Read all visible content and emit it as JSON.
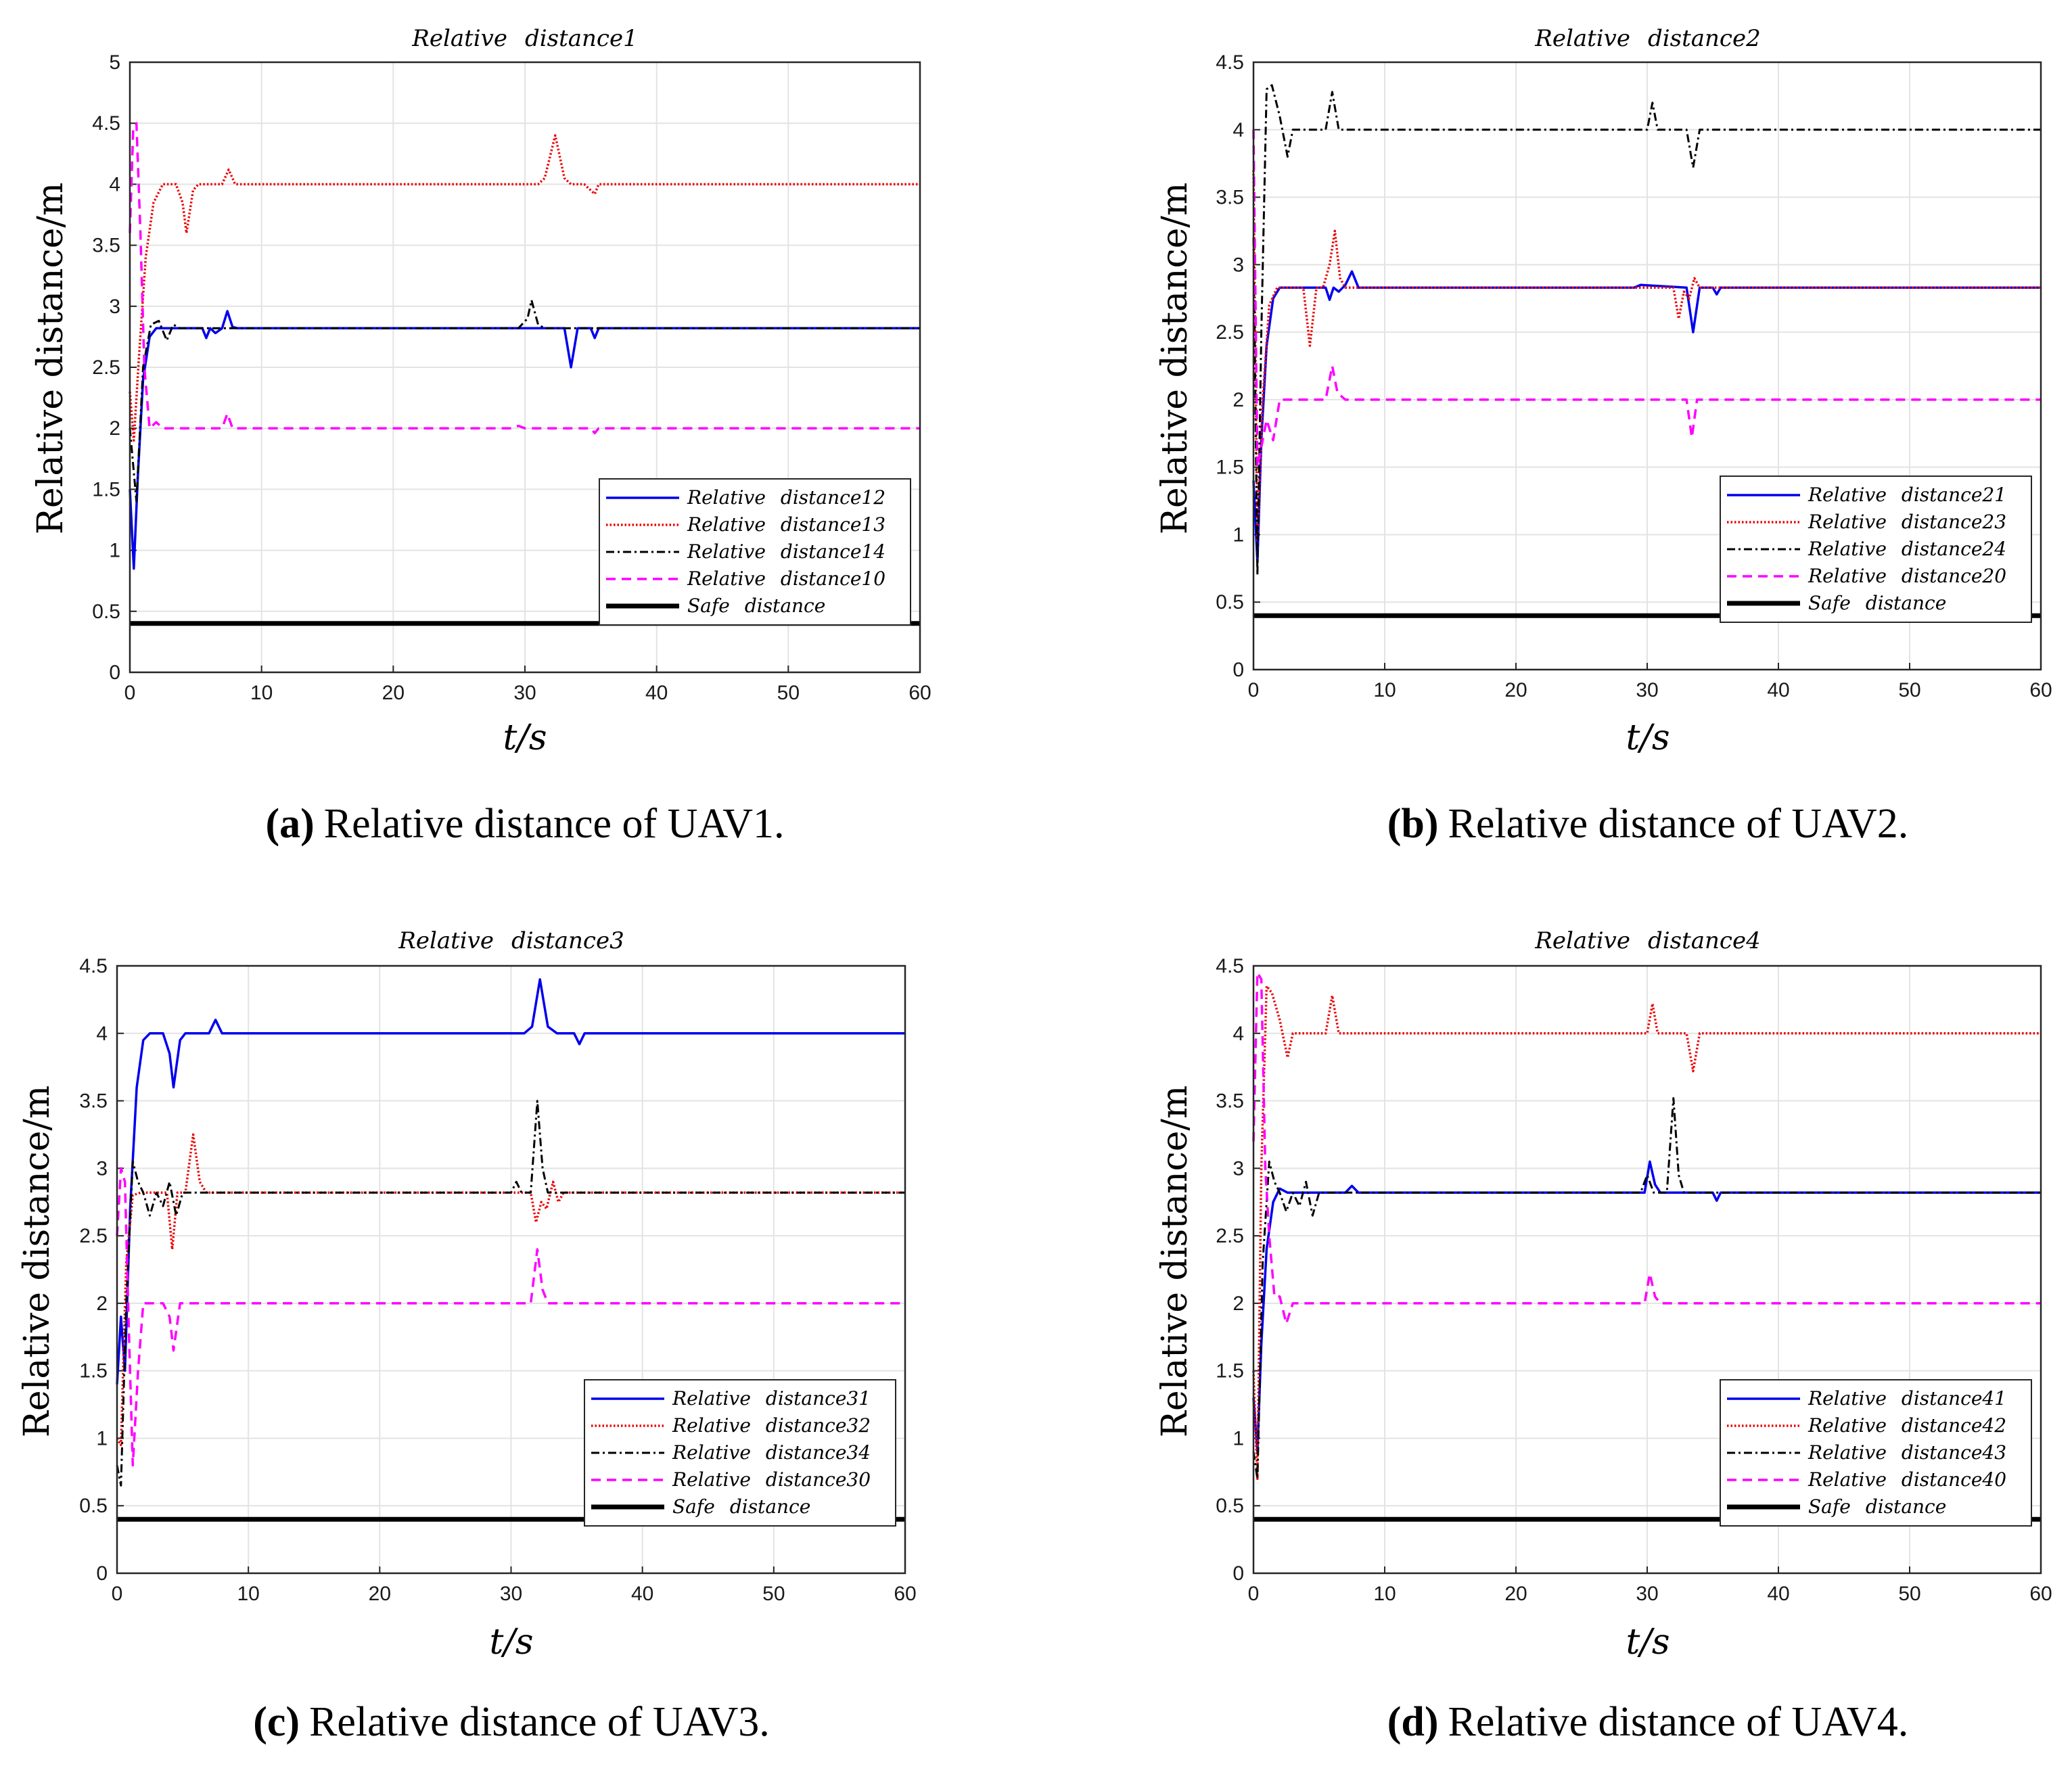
{
  "figure": {
    "panels": [
      {
        "key": "a",
        "caption_letter": "a",
        "caption_text": "Relative distance of UAV1.",
        "legend_ids": [
          "12",
          "13",
          "14",
          "10"
        ]
      },
      {
        "key": "b",
        "caption_letter": "b",
        "caption_text": "Relative distance of UAV2.",
        "legend_ids": [
          "21",
          "23",
          "24",
          "20"
        ]
      },
      {
        "key": "c",
        "caption_letter": "c",
        "caption_text": "Relative distance of UAV3.",
        "legend_ids": [
          "31",
          "32",
          "34",
          "30"
        ]
      },
      {
        "key": "d",
        "caption_letter": "d",
        "caption_text": "Relative distance of UAV4.",
        "legend_ids": [
          "41",
          "42",
          "43",
          "40"
        ]
      }
    ]
  },
  "colors": {
    "blue": "#0000ee",
    "red": "#ee0000",
    "black": "#000000",
    "magenta": "#ff00ff",
    "safe": "#000000"
  },
  "chart_data": [
    {
      "type": "line",
      "title": "Relative distance1",
      "title_word1": "Relative",
      "title_word2": "distance1",
      "xlabel": "t/s",
      "ylabel": "Relative distance/m",
      "xlim": [
        0,
        60
      ],
      "ylim": [
        0,
        5
      ],
      "xticks": [
        "0",
        "10",
        "20",
        "30",
        "40",
        "50",
        "60"
      ],
      "yticks": [
        "0",
        "0.5",
        "1",
        "1.5",
        "2",
        "2.5",
        "3",
        "3.5",
        "4",
        "4.5",
        "5"
      ],
      "legend_position": "bottom-right",
      "series": [
        {
          "name": "Relative distance12",
          "word1": "Relative",
          "word2": "distance12",
          "color": "blue",
          "style": "solid",
          "x": [
            0,
            0.3,
            0.6,
            1.0,
            1.5,
            2.0,
            2.8,
            3.5,
            5.5,
            5.8,
            6.1,
            6.5,
            7.0,
            7.4,
            7.8,
            8.2,
            33.0,
            33.5,
            34.0,
            34.5,
            35.0,
            35.3,
            35.6,
            36.0,
            60
          ],
          "y": [
            1.5,
            0.85,
            1.6,
            2.4,
            2.75,
            2.82,
            2.82,
            2.82,
            2.82,
            2.74,
            2.82,
            2.78,
            2.82,
            2.96,
            2.83,
            2.82,
            2.82,
            2.5,
            2.82,
            2.82,
            2.82,
            2.74,
            2.82,
            2.82,
            2.82
          ]
        },
        {
          "name": "Relative distance13",
          "word1": "Relative",
          "word2": "distance13",
          "color": "red",
          "style": "dotted",
          "x": [
            0,
            0.3,
            0.7,
            1.2,
            1.8,
            2.5,
            3.5,
            4.0,
            4.3,
            4.8,
            5.2,
            7.0,
            7.5,
            8.0,
            31.0,
            31.5,
            32.3,
            33.0,
            33.5,
            34.5,
            35.0,
            35.3,
            35.6,
            60
          ],
          "y": [
            2.3,
            1.9,
            2.6,
            3.4,
            3.85,
            4.0,
            4.0,
            3.85,
            3.6,
            3.95,
            4.0,
            4.0,
            4.12,
            4.0,
            4.0,
            4.05,
            4.4,
            4.05,
            4.0,
            4.0,
            3.95,
            3.92,
            4.0,
            4.0
          ]
        },
        {
          "name": "Relative distance14",
          "word1": "Relative",
          "word2": "distance14",
          "color": "black",
          "style": "dashdot",
          "x": [
            0,
            0.5,
            1.0,
            1.6,
            2.2,
            2.8,
            3.3,
            3.8,
            29.5,
            30.2,
            30.5,
            31.0,
            31.5,
            60
          ],
          "y": [
            2.0,
            1.4,
            2.5,
            2.85,
            2.88,
            2.72,
            2.85,
            2.82,
            2.82,
            2.9,
            3.05,
            2.85,
            2.82,
            2.82
          ]
        },
        {
          "name": "Relative distance10",
          "word1": "Relative",
          "word2": "distance10",
          "color": "magenta",
          "style": "dashed",
          "x": [
            0,
            0.25,
            0.5,
            0.8,
            1.1,
            1.5,
            2.0,
            2.5,
            7.0,
            7.4,
            7.8,
            29.0,
            29.5,
            30.0,
            35.0,
            35.3,
            35.6,
            60
          ],
          "y": [
            3.6,
            4.45,
            4.5,
            3.6,
            2.5,
            2.0,
            2.05,
            2.0,
            2.0,
            2.12,
            2.0,
            2.0,
            2.02,
            2.0,
            2.0,
            1.96,
            2.0,
            2.0
          ]
        },
        {
          "name": "Safe distance",
          "word1": "Safe",
          "word2": "distance",
          "color": "safe",
          "style": "thick",
          "x": [
            0,
            60
          ],
          "y": [
            0.4,
            0.4
          ]
        }
      ]
    },
    {
      "type": "line",
      "title": "Relative distance2",
      "title_word1": "Relative",
      "title_word2": "distance2",
      "xlabel": "t/s",
      "ylabel": "Relative distance/m",
      "xlim": [
        0,
        60
      ],
      "ylim": [
        0,
        4.5
      ],
      "xticks": [
        "0",
        "10",
        "20",
        "30",
        "40",
        "50",
        "60"
      ],
      "yticks": [
        "0",
        "0.5",
        "1",
        "1.5",
        "2",
        "2.5",
        "3",
        "3.5",
        "4",
        "4.5"
      ],
      "legend_position": "bottom-right",
      "series": [
        {
          "name": "Relative distance21",
          "word1": "Relative",
          "word2": "distance21",
          "color": "blue",
          "style": "solid",
          "x": [
            0,
            0.3,
            0.6,
            1.0,
            1.5,
            2.0,
            2.5,
            5.5,
            5.8,
            6.1,
            6.5,
            7.0,
            7.5,
            8.0,
            29.0,
            29.5,
            33.0,
            33.5,
            34.0,
            35.0,
            35.3,
            35.6,
            60
          ],
          "y": [
            1.4,
            0.8,
            1.7,
            2.4,
            2.75,
            2.83,
            2.83,
            2.83,
            2.74,
            2.83,
            2.8,
            2.85,
            2.95,
            2.83,
            2.83,
            2.85,
            2.83,
            2.5,
            2.83,
            2.83,
            2.78,
            2.83,
            2.83
          ]
        },
        {
          "name": "Relative distance23",
          "word1": "Relative",
          "word2": "distance23",
          "color": "red",
          "style": "dotted",
          "x": [
            0,
            0.3,
            0.7,
            1.2,
            1.8,
            2.5,
            3.8,
            4.3,
            4.8,
            5.3,
            5.8,
            6.2,
            6.6,
            7.0,
            32.0,
            32.4,
            32.8,
            33.2,
            33.6,
            34.0,
            60
          ],
          "y": [
            3.7,
            0.95,
            2.0,
            2.7,
            2.83,
            2.83,
            2.83,
            2.4,
            2.83,
            2.83,
            3.0,
            3.25,
            2.9,
            2.83,
            2.83,
            2.6,
            2.8,
            2.75,
            2.9,
            2.83,
            2.83
          ]
        },
        {
          "name": "Relative distance24",
          "word1": "Relative",
          "word2": "distance24",
          "color": "black",
          "style": "dashdot",
          "x": [
            0,
            0.3,
            0.6,
            1.0,
            1.4,
            2.0,
            2.6,
            3.0,
            5.5,
            6.0,
            6.5,
            30.0,
            30.4,
            30.8,
            33.0,
            33.5,
            34.0,
            60
          ],
          "y": [
            3.2,
            0.7,
            2.5,
            4.3,
            4.33,
            4.1,
            3.8,
            4.0,
            4.0,
            4.28,
            4.0,
            4.0,
            4.2,
            4.0,
            4.0,
            3.72,
            4.0,
            4.0
          ]
        },
        {
          "name": "Relative distance20",
          "word1": "Relative",
          "word2": "distance20",
          "color": "magenta",
          "style": "dashed",
          "x": [
            0,
            0.3,
            0.7,
            1.0,
            1.5,
            2.0,
            2.5,
            5.5,
            6.0,
            6.4,
            7.0,
            33.0,
            33.4,
            33.8,
            60
          ],
          "y": [
            4.0,
            1.5,
            1.7,
            1.85,
            1.7,
            2.0,
            2.0,
            2.0,
            2.25,
            2.05,
            2.0,
            2.0,
            1.72,
            2.0,
            2.0
          ]
        },
        {
          "name": "Safe distance",
          "word1": "Safe",
          "word2": "distance",
          "color": "safe",
          "style": "thick",
          "x": [
            0,
            60
          ],
          "y": [
            0.4,
            0.4
          ]
        }
      ]
    },
    {
      "type": "line",
      "title": "Relative distance3",
      "title_word1": "Relative",
      "title_word2": "distance3",
      "xlabel": "t/s",
      "ylabel": "Relative distance/m",
      "xlim": [
        0,
        60
      ],
      "ylim": [
        0,
        4.5
      ],
      "xticks": [
        "0",
        "10",
        "20",
        "30",
        "40",
        "50",
        "60"
      ],
      "yticks": [
        "0",
        "0.5",
        "1",
        "1.5",
        "2",
        "2.5",
        "3",
        "3.5",
        "4",
        "4.5"
      ],
      "legend_position": "bottom-right",
      "series": [
        {
          "name": "Relative distance31",
          "word1": "Relative",
          "word2": "distance31",
          "color": "blue",
          "style": "solid",
          "x": [
            0,
            0.3,
            0.6,
            1.0,
            1.5,
            2.0,
            2.5,
            3.5,
            4.0,
            4.3,
            4.8,
            5.2,
            7.0,
            7.5,
            8.0,
            31.0,
            31.6,
            32.2,
            32.8,
            33.5,
            34.8,
            35.2,
            35.6,
            60
          ],
          "y": [
            1.4,
            1.9,
            1.5,
            2.7,
            3.6,
            3.95,
            4.0,
            4.0,
            3.85,
            3.6,
            3.95,
            4.0,
            4.0,
            4.1,
            4.0,
            4.0,
            4.05,
            4.4,
            4.05,
            4.0,
            4.0,
            3.92,
            4.0,
            4.0
          ]
        },
        {
          "name": "Relative distance32",
          "word1": "Relative",
          "word2": "distance32",
          "color": "red",
          "style": "dotted",
          "x": [
            0,
            0.3,
            0.7,
            1.2,
            1.8,
            2.5,
            3.8,
            4.2,
            4.6,
            5.2,
            5.8,
            6.3,
            6.8,
            31.5,
            31.9,
            32.3,
            32.7,
            33.2,
            33.6,
            34.0,
            60
          ],
          "y": [
            1.0,
            0.95,
            2.3,
            2.8,
            2.82,
            2.82,
            2.82,
            2.4,
            2.82,
            2.82,
            3.25,
            2.9,
            2.82,
            2.82,
            2.6,
            2.75,
            2.7,
            2.9,
            2.75,
            2.82,
            2.82
          ]
        },
        {
          "name": "Relative distance34",
          "word1": "Relative",
          "word2": "distance34",
          "color": "black",
          "style": "dashdot",
          "x": [
            0,
            0.3,
            0.7,
            1.2,
            1.6,
            2.0,
            2.5,
            3.0,
            3.5,
            4.0,
            4.5,
            5.0,
            30.0,
            30.4,
            30.8,
            31.5,
            32.0,
            32.4,
            32.8,
            33.3,
            60
          ],
          "y": [
            0.8,
            0.65,
            2.0,
            3.05,
            2.9,
            2.82,
            2.65,
            2.82,
            2.72,
            2.9,
            2.65,
            2.82,
            2.82,
            2.9,
            2.82,
            2.82,
            3.5,
            3.0,
            2.82,
            2.82,
            2.82
          ]
        },
        {
          "name": "Relative distance30",
          "word1": "Relative",
          "word2": "distance30",
          "color": "magenta",
          "style": "dashed",
          "x": [
            0,
            0.3,
            0.6,
            0.9,
            1.2,
            1.6,
            2.0,
            2.5,
            3.5,
            4.0,
            4.3,
            4.8,
            5.5,
            31.5,
            32.0,
            32.4,
            32.8,
            33.3,
            60
          ],
          "y": [
            2.5,
            3.0,
            2.9,
            1.8,
            0.8,
            1.5,
            2.0,
            2.0,
            2.0,
            1.9,
            1.65,
            2.0,
            2.0,
            2.0,
            2.4,
            2.1,
            2.0,
            2.0,
            2.0
          ]
        },
        {
          "name": "Safe distance",
          "word1": "Safe",
          "word2": "distance",
          "color": "safe",
          "style": "thick",
          "x": [
            0,
            60
          ],
          "y": [
            0.4,
            0.4
          ]
        }
      ]
    },
    {
      "type": "line",
      "title": "Relative distance4",
      "title_word1": "Relative",
      "title_word2": "distance4",
      "xlabel": "t/s",
      "ylabel": "Relative distance/m",
      "xlim": [
        0,
        60
      ],
      "ylim": [
        0,
        4.5
      ],
      "xticks": [
        "0",
        "10",
        "20",
        "30",
        "40",
        "50",
        "60"
      ],
      "yticks": [
        "0",
        "0.5",
        "1",
        "1.5",
        "2",
        "2.5",
        "3",
        "3.5",
        "4",
        "4.5"
      ],
      "legend_position": "bottom-right",
      "series": [
        {
          "name": "Relative distance41",
          "word1": "Relative",
          "word2": "distance41",
          "color": "blue",
          "style": "solid",
          "x": [
            0,
            0.3,
            0.6,
            1.0,
            1.5,
            2.0,
            2.6,
            3.0,
            7.0,
            7.5,
            8.0,
            29.8,
            30.2,
            30.6,
            31.0,
            35.0,
            35.3,
            35.6,
            60
          ],
          "y": [
            1.3,
            0.9,
            1.7,
            2.4,
            2.75,
            2.85,
            2.82,
            2.82,
            2.82,
            2.87,
            2.82,
            2.82,
            3.05,
            2.88,
            2.82,
            2.82,
            2.76,
            2.82,
            2.82
          ]
        },
        {
          "name": "Relative distance42",
          "word1": "Relative",
          "word2": "distance42",
          "color": "red",
          "style": "dotted",
          "x": [
            0,
            0.3,
            0.6,
            1.0,
            1.4,
            2.0,
            2.6,
            3.0,
            5.5,
            6.0,
            6.5,
            30.0,
            30.4,
            30.8,
            33.0,
            33.5,
            34.0,
            60
          ],
          "y": [
            1.5,
            0.7,
            3.0,
            4.35,
            4.3,
            4.1,
            3.82,
            4.0,
            4.0,
            4.28,
            4.0,
            4.0,
            4.22,
            4.0,
            4.0,
            3.72,
            4.0,
            4.0
          ]
        },
        {
          "name": "Relative distance43",
          "word1": "Relative",
          "word2": "distance43",
          "color": "black",
          "style": "dashdot",
          "x": [
            0,
            0.3,
            0.7,
            1.2,
            1.6,
            2.0,
            2.5,
            3.0,
            3.5,
            4.0,
            4.5,
            5.0,
            29.5,
            30.0,
            30.5,
            31.5,
            32.0,
            32.4,
            32.8,
            60
          ],
          "y": [
            0.9,
            0.7,
            2.3,
            3.05,
            2.9,
            2.82,
            2.68,
            2.82,
            2.72,
            2.9,
            2.65,
            2.82,
            2.82,
            2.95,
            2.82,
            2.82,
            3.52,
            2.95,
            2.82,
            2.82
          ]
        },
        {
          "name": "Relative distance40",
          "word1": "Relative",
          "word2": "distance40",
          "color": "magenta",
          "style": "dashed",
          "x": [
            0,
            0.3,
            0.6,
            0.9,
            1.2,
            1.6,
            2.0,
            2.5,
            3.0,
            3.5,
            29.8,
            30.2,
            30.6,
            31.0,
            60
          ],
          "y": [
            3.2,
            4.45,
            4.4,
            3.0,
            2.5,
            2.05,
            2.05,
            1.85,
            2.0,
            2.0,
            2.0,
            2.22,
            2.05,
            2.0,
            2.0
          ]
        },
        {
          "name": "Safe distance",
          "word1": "Safe",
          "word2": "distance",
          "color": "safe",
          "style": "thick",
          "x": [
            0,
            60
          ],
          "y": [
            0.4,
            0.4
          ]
        }
      ]
    }
  ]
}
